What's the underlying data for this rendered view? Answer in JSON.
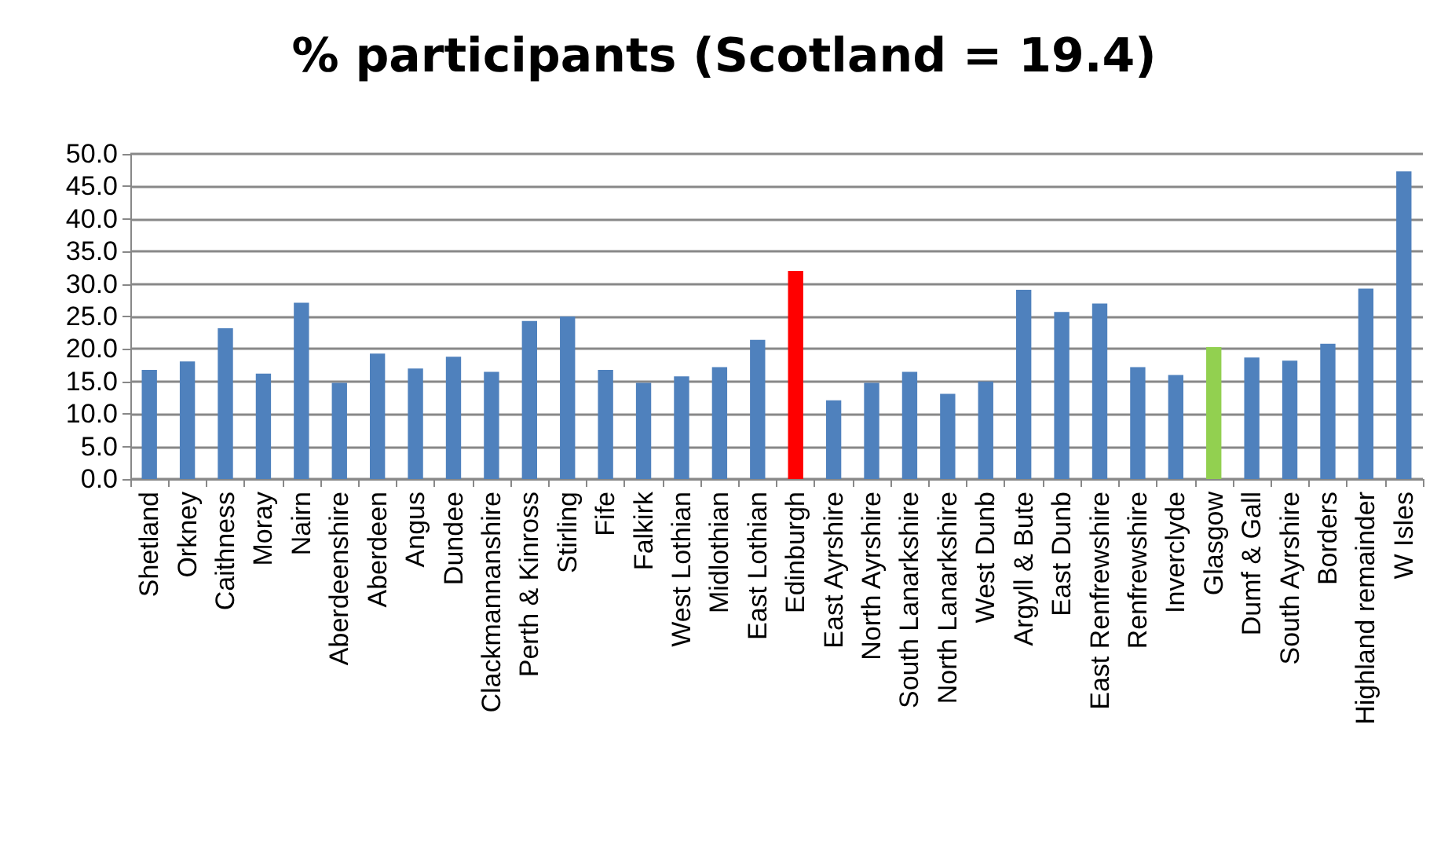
{
  "chart_data": {
    "type": "bar",
    "title": "% participants (Scotland = 19.4)",
    "categories": [
      "Shetland",
      "Orkney",
      "Caithness",
      "Moray",
      "Nairn",
      "Aberdeenshire",
      "Aberdeen",
      "Angus",
      "Dundee",
      "Clackmannanshire",
      "Perth & Kinross",
      "Stirling",
      "Fife",
      "Falkirk",
      "West Lothian",
      "Midlothian",
      "East Lothian",
      "Edinburgh",
      "East Ayrshire",
      "North Ayrshire",
      "South Lanarkshire",
      "North Lanarkshire",
      "West Dunb",
      "Argyll & Bute",
      "East Dunb",
      "East Renfrewshire",
      "Renfrewshire",
      "Inverclyde",
      "Glasgow",
      "Dumf & Gall",
      "South Ayrshire",
      "Borders",
      "Highland remainder",
      "W Isles"
    ],
    "values": [
      16.8,
      18.1,
      23.2,
      16.2,
      27.1,
      14.8,
      19.3,
      17.0,
      18.8,
      16.5,
      24.3,
      25.0,
      16.8,
      14.8,
      15.8,
      17.2,
      21.4,
      32.0,
      12.1,
      14.8,
      16.5,
      13.1,
      15.0,
      29.1,
      25.7,
      27.0,
      17.2,
      16.0,
      20.3,
      18.7,
      18.2,
      20.8,
      29.3,
      47.3
    ],
    "colors": [
      "#4f81bd",
      "#4f81bd",
      "#4f81bd",
      "#4f81bd",
      "#4f81bd",
      "#4f81bd",
      "#4f81bd",
      "#4f81bd",
      "#4f81bd",
      "#4f81bd",
      "#4f81bd",
      "#4f81bd",
      "#4f81bd",
      "#4f81bd",
      "#4f81bd",
      "#4f81bd",
      "#4f81bd",
      "#ff0000",
      "#4f81bd",
      "#4f81bd",
      "#4f81bd",
      "#4f81bd",
      "#4f81bd",
      "#4f81bd",
      "#4f81bd",
      "#4f81bd",
      "#4f81bd",
      "#4f81bd",
      "#92d050",
      "#4f81bd",
      "#4f81bd",
      "#4f81bd",
      "#4f81bd",
      "#4f81bd"
    ],
    "ylim": [
      0,
      50
    ],
    "yticks": [
      {
        "value": 0,
        "label": "0.0"
      },
      {
        "value": 5,
        "label": "5.0"
      },
      {
        "value": 10,
        "label": "10.0"
      },
      {
        "value": 15,
        "label": "15.0"
      },
      {
        "value": 20,
        "label": "20.0"
      },
      {
        "value": 25,
        "label": "25.0"
      },
      {
        "value": 30,
        "label": "30.0"
      },
      {
        "value": 35,
        "label": "35.0"
      },
      {
        "value": 40,
        "label": "40.0"
      },
      {
        "value": 45,
        "label": "45.0"
      },
      {
        "value": 50,
        "label": "50.0"
      }
    ],
    "grid": "y"
  }
}
